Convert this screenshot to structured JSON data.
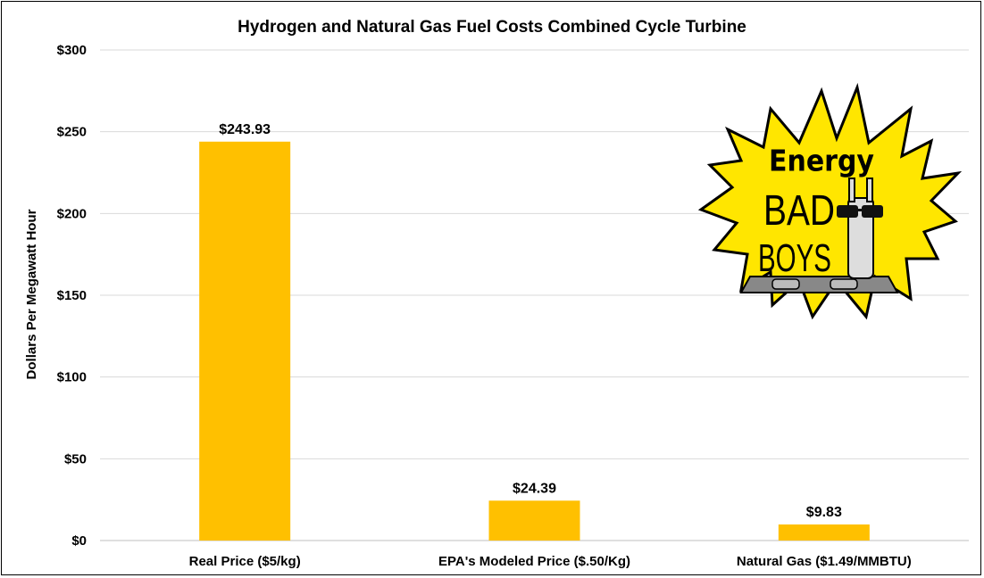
{
  "chart_data": {
    "type": "bar",
    "title": "Hydrogen and Natural Gas Fuel Costs Combined Cycle Turbine",
    "xlabel": "",
    "ylabel": "Dollars Per Megawatt Hour",
    "categories": [
      "Real Price ($5/kg)",
      "EPA's Modeled Price ($.50/Kg)",
      "Natural Gas ($1.49/MMBTU)"
    ],
    "values": [
      243.93,
      24.39,
      9.83
    ],
    "data_labels": [
      "$243.93",
      "$24.39",
      "$9.83"
    ],
    "ylim": [
      0,
      300
    ],
    "yticks": [
      0,
      50,
      100,
      150,
      200,
      250,
      300
    ],
    "ytick_labels": [
      "$0",
      "$50",
      "$100",
      "$150",
      "$200",
      "$250",
      "$300"
    ],
    "grid": true,
    "bar_color": "#FFC000",
    "legend": "none"
  },
  "logo": {
    "name": "energy-bad-boys-logo",
    "text_line1": "Energy",
    "text_line2": "BAD",
    "text_line3": "BOYS",
    "burst_color": "#FFE600"
  }
}
